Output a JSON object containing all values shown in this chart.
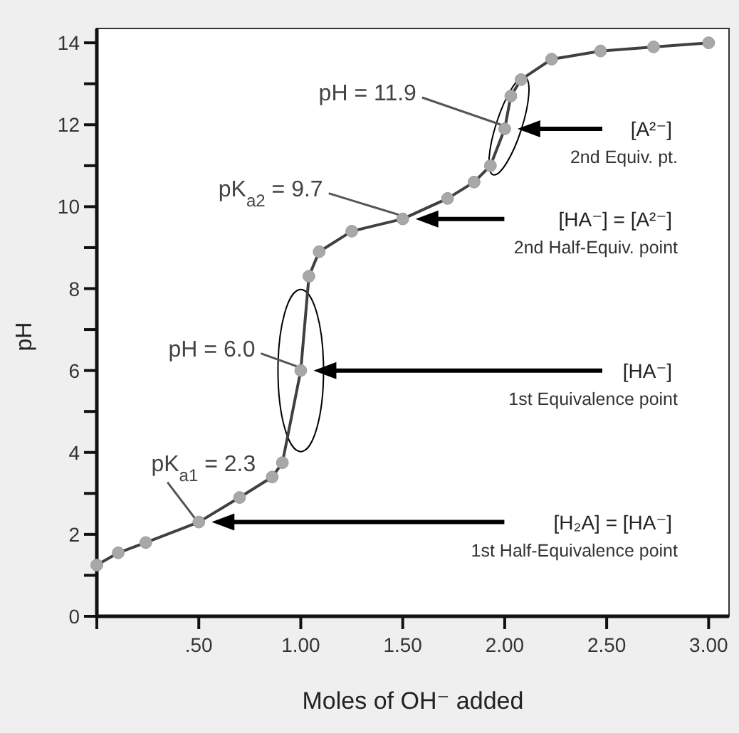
{
  "chart_data": {
    "type": "line",
    "xlabel": "Moles of OH⁻ added",
    "ylabel": "pH",
    "x": [
      0,
      0.105,
      0.24,
      0.5,
      0.7,
      0.86,
      0.91,
      1.0,
      1.04,
      1.09,
      1.25,
      1.5,
      1.72,
      1.85,
      1.93,
      2.0,
      2.03,
      2.08,
      2.23,
      2.47,
      2.73,
      3.0
    ],
    "series": [
      {
        "color": "#404040",
        "values": [
          1.25,
          1.55,
          1.8,
          2.3,
          2.9,
          3.4,
          3.75,
          6.0,
          8.3,
          8.9,
          9.4,
          9.7,
          10.2,
          10.6,
          11.0,
          11.9,
          12.7,
          13.1,
          13.6,
          13.8,
          13.9,
          14.0
        ]
      }
    ],
    "xlim": [
      0,
      3.1
    ],
    "ylim": [
      0,
      14.35
    ],
    "xticks": [
      {
        "value": 0,
        "label": null
      },
      {
        "value": 0.5,
        "label": ".50"
      },
      {
        "value": 1,
        "label": "1.00"
      },
      {
        "value": 1.5,
        "label": "1.50"
      },
      {
        "value": 2,
        "label": "2.00"
      },
      {
        "value": 2.5,
        "label": "2.50"
      },
      {
        "value": 3,
        "label": "3.00"
      }
    ],
    "yticks": [
      0,
      {
        "value": 1,
        "label": null
      },
      2,
      {
        "value": 3,
        "label": null
      },
      4,
      {
        "value": 5,
        "label": null
      },
      6,
      {
        "value": 7,
        "label": null
      },
      8,
      {
        "value": 9,
        "label": null
      },
      10,
      {
        "value": 11,
        "label": null
      },
      12,
      {
        "value": 13,
        "label": null
      },
      14
    ],
    "marker": "circle",
    "line_style": "solid",
    "grid": false,
    "annotations": [
      {
        "text": "pH = 11.9",
        "x": 2.0,
        "y": 11.9
      },
      "[A²⁻]\n2nd Equiv. pt.",
      {
        "text": "pK$_{a2}$ = 9.7",
        "x": 1.5,
        "y": 9.7
      },
      "[HA⁻] = [A²⁻]\n2nd Half-Equiv. point",
      {
        "text": "pH = 6.0",
        "x": 1.0,
        "y": 6.0
      },
      "[HA⁻]\n1st Equivalence point",
      {
        "text": "pK$_{a1}$ = 2.3",
        "x": 0.5,
        "y": 2.3
      },
      "[H₂A] = [HA⁻]\n1st Half-Equivalence point"
    ]
  }
}
